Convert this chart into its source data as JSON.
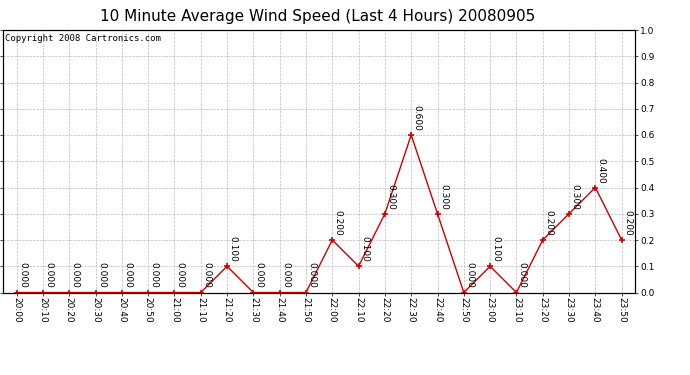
{
  "title": "10 Minute Average Wind Speed (Last 4 Hours) 20080905",
  "copyright": "Copyright 2008 Cartronics.com",
  "x_labels": [
    "20:00",
    "20:10",
    "20:20",
    "20:30",
    "20:40",
    "20:50",
    "21:00",
    "21:10",
    "21:20",
    "21:30",
    "21:40",
    "21:50",
    "22:00",
    "22:10",
    "22:20",
    "22:30",
    "22:40",
    "22:50",
    "23:00",
    "23:10",
    "23:20",
    "23:30",
    "23:40",
    "23:50"
  ],
  "y_values": [
    0.0,
    0.0,
    0.0,
    0.0,
    0.0,
    0.0,
    0.0,
    0.0,
    0.1,
    0.0,
    0.0,
    0.0,
    0.2,
    0.1,
    0.3,
    0.6,
    0.3,
    0.0,
    0.1,
    0.0,
    0.2,
    0.3,
    0.4,
    0.2
  ],
  "line_color": "#cc0000",
  "marker_color": "#cc0000",
  "bg_color": "#ffffff",
  "grid_color": "#bbbbbb",
  "ylim": [
    0.0,
    1.0
  ],
  "yticks": [
    0.0,
    0.1,
    0.2,
    0.3,
    0.4,
    0.5,
    0.6,
    0.7,
    0.8,
    0.9,
    1.0
  ],
  "title_fontsize": 11,
  "label_fontsize": 6.5,
  "annot_fontsize": 6.5,
  "copyright_fontsize": 6.5
}
